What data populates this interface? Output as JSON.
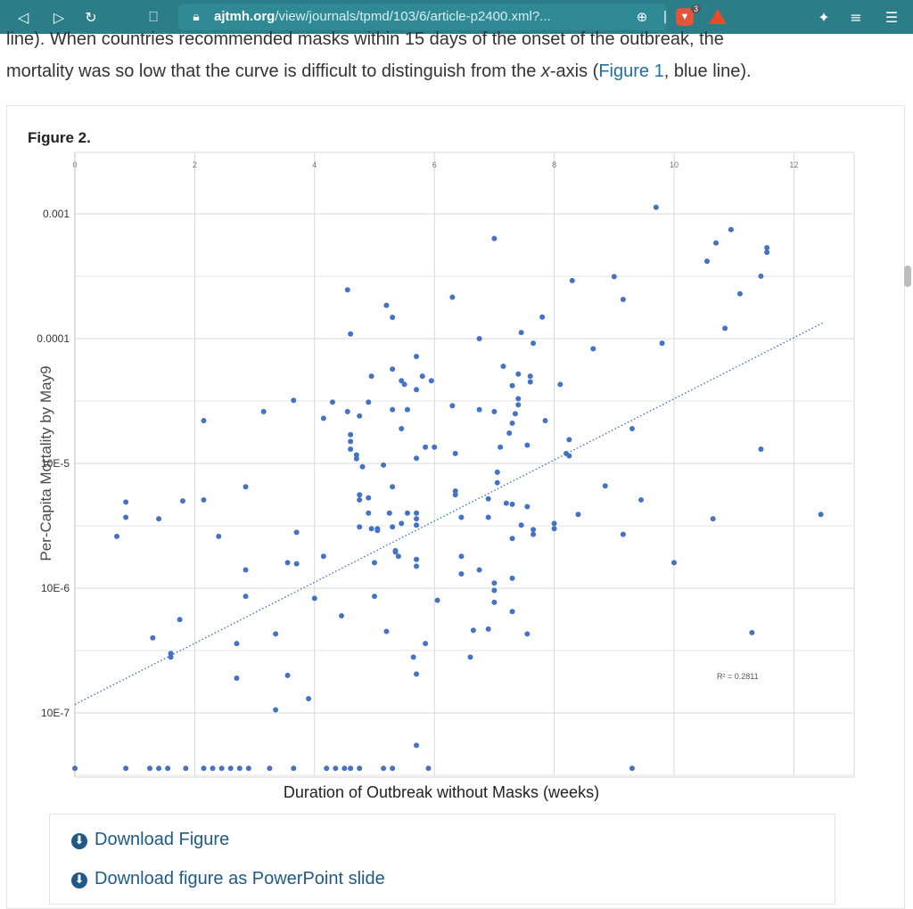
{
  "browser": {
    "url_host": "ajtmh.org",
    "url_path": "/view/journals/tpmd/103/6/article-p2400.xml?...",
    "shield_count": "3"
  },
  "article": {
    "line1": "line). When countries recommended masks within 15 days of the onset of the outbreak, the",
    "line2_a": "mortality was so low that the curve is difficult to distinguish from the ",
    "line2_x": "x",
    "line2_b": "-axis (",
    "line2_link": "Figure 1",
    "line2_c": ", blue line)."
  },
  "figure": {
    "label": "Figure 2.",
    "download_figure": "Download Figure",
    "download_ppt": "Download figure as PowerPoint slide"
  },
  "chart_data": {
    "type": "scatter",
    "xlabel": "Duration of Outbreak without Masks (weeks)",
    "ylabel": "Per-Capita Mortality by May9",
    "x_ticks": [
      "0",
      "2",
      "4",
      "6",
      "8",
      "10",
      "12"
    ],
    "y_ticks": [
      "0.001",
      "0.0001",
      "10E-5",
      "10E-6",
      "10E-7"
    ],
    "xlim": [
      0,
      12.6
    ],
    "y_scale": "log",
    "ylim": [
      3e-08,
      0.002
    ],
    "grid": true,
    "trendline": {
      "style": "dotted",
      "x0": 0,
      "y0": 1.17e-07,
      "x1": 12.5,
      "y1": 0.000135
    },
    "r2_label": "R² = 0.2811",
    "point_color": "#4472c4",
    "floor_value": 3.6e-08,
    "points": [
      [
        0.7,
        2.6e-06
      ],
      [
        0.85,
        4.9e-06
      ],
      [
        0.85,
        3.7e-06
      ],
      [
        1.4,
        3.6e-06
      ],
      [
        1.8,
        5e-06
      ],
      [
        2.15,
        5.1e-06
      ],
      [
        2.15,
        2.2e-05
      ],
      [
        2.4,
        2.6e-06
      ],
      [
        2.85,
        6.5e-06
      ],
      [
        1.3,
        4e-07
      ],
      [
        1.75,
        5.6e-07
      ],
      [
        1.6,
        3e-07
      ],
      [
        1.6,
        2.8e-07
      ],
      [
        2.7,
        3.6e-07
      ],
      [
        2.7,
        1.9e-07
      ],
      [
        2.85,
        1.4e-06
      ],
      [
        2.85,
        8.6e-07
      ],
      [
        3.15,
        2.6e-05
      ],
      [
        3.35,
        4.3e-07
      ],
      [
        3.35,
        1.06e-07
      ],
      [
        3.55,
        2e-07
      ],
      [
        3.65,
        3.2e-05
      ],
      [
        3.55,
        1.6e-06
      ],
      [
        3.7,
        1.57e-06
      ],
      [
        3.7,
        2.8e-06
      ],
      [
        3.9,
        1.3e-07
      ],
      [
        4.0,
        8.3e-07
      ],
      [
        4.15,
        2.3e-05
      ],
      [
        4.15,
        1.8e-06
      ],
      [
        4.3,
        3.1e-05
      ],
      [
        4.55,
        0.000246
      ],
      [
        4.45,
        6e-07
      ],
      [
        4.6,
        0.000109
      ],
      [
        4.55,
        2.6e-05
      ],
      [
        4.6,
        1.7e-05
      ],
      [
        4.6,
        1.5e-05
      ],
      [
        4.6,
        1.3e-05
      ],
      [
        4.7,
        1.17e-05
      ],
      [
        4.7,
        1.09e-05
      ],
      [
        4.75,
        2.4e-05
      ],
      [
        4.75,
        5.6e-06
      ],
      [
        4.75,
        5.1e-06
      ],
      [
        4.75,
        3.1e-06
      ],
      [
        4.8,
        9.4e-06
      ],
      [
        4.9,
        3.1e-05
      ],
      [
        4.9,
        5.3e-06
      ],
      [
        4.9,
        4e-06
      ],
      [
        4.95,
        5e-05
      ],
      [
        4.95,
        3e-06
      ],
      [
        5.0,
        1.6e-06
      ],
      [
        5.0,
        8.6e-07
      ],
      [
        5.05,
        3e-06
      ],
      [
        5.05,
        2.9e-06
      ],
      [
        5.15,
        9.7e-06
      ],
      [
        5.2,
        4.5e-07
      ],
      [
        5.2,
        0.000185
      ],
      [
        5.25,
        4e-06
      ],
      [
        5.3,
        0.000148
      ],
      [
        5.3,
        6.5e-06
      ],
      [
        5.3,
        5.7e-05
      ],
      [
        5.3,
        2.7e-05
      ],
      [
        5.3,
        3.1e-06
      ],
      [
        5.35,
        1.95e-06
      ],
      [
        5.35,
        2e-06
      ],
      [
        5.4,
        1.8e-06
      ],
      [
        5.45,
        4.6e-05
      ],
      [
        5.45,
        1.9e-05
      ],
      [
        5.45,
        3.3e-06
      ],
      [
        5.5,
        4.3e-05
      ],
      [
        5.55,
        4e-06
      ],
      [
        5.55,
        2.7e-05
      ],
      [
        5.65,
        2.8e-07
      ],
      [
        5.7,
        3.9e-05
      ],
      [
        5.7,
        7.2e-05
      ],
      [
        5.7,
        1.1e-05
      ],
      [
        5.7,
        3.2e-06
      ],
      [
        5.7,
        3.6e-06
      ],
      [
        5.7,
        4e-06
      ],
      [
        5.7,
        1.7e-06
      ],
      [
        5.7,
        1.5e-06
      ],
      [
        5.7,
        2.05e-07
      ],
      [
        5.7,
        5.5e-08
      ],
      [
        5.8,
        5e-05
      ],
      [
        5.85,
        1.35e-05
      ],
      [
        5.85,
        3.6e-07
      ],
      [
        5.95,
        4.6e-05
      ],
      [
        6.0,
        1.35e-05
      ],
      [
        6.05,
        8e-07
      ],
      [
        6.3,
        2.9e-05
      ],
      [
        6.3,
        0.000215
      ],
      [
        6.35,
        6e-06
      ],
      [
        6.35,
        5.6e-06
      ],
      [
        6.35,
        1.2e-05
      ],
      [
        6.45,
        3.7e-06
      ],
      [
        6.45,
        1.3e-06
      ],
      [
        6.45,
        1.8e-06
      ],
      [
        6.6,
        2.8e-07
      ],
      [
        6.65,
        4.6e-07
      ],
      [
        6.75,
        0.0001
      ],
      [
        6.75,
        2.7e-05
      ],
      [
        6.75,
        1.4e-06
      ],
      [
        6.9,
        4.7e-07
      ],
      [
        6.9,
        5.2e-06
      ],
      [
        6.9,
        3.7e-06
      ],
      [
        7.0,
        0.000635
      ],
      [
        7.0,
        2.6e-05
      ],
      [
        7.0,
        7.7e-07
      ],
      [
        7.05,
        7e-06
      ],
      [
        7.0,
        1.1e-06
      ],
      [
        7.0,
        9.6e-07
      ],
      [
        7.05,
        8.5e-06
      ],
      [
        7.1,
        1.35e-05
      ],
      [
        7.15,
        6e-05
      ],
      [
        7.2,
        4.8e-06
      ],
      [
        7.25,
        1.75e-05
      ],
      [
        7.3,
        2.1e-05
      ],
      [
        7.3,
        6.5e-07
      ],
      [
        7.3,
        1.2e-06
      ],
      [
        7.3,
        4.2e-05
      ],
      [
        7.3,
        4.7e-06
      ],
      [
        7.3,
        2.5e-06
      ],
      [
        7.35,
        2.5e-05
      ],
      [
        7.4,
        3.3e-05
      ],
      [
        7.4,
        2.95e-05
      ],
      [
        7.4,
        5.2e-05
      ],
      [
        7.45,
        0.000112
      ],
      [
        7.45,
        3.2e-06
      ],
      [
        7.55,
        1.4e-05
      ],
      [
        7.55,
        4.5e-06
      ],
      [
        7.55,
        4.3e-07
      ],
      [
        7.6,
        5e-05
      ],
      [
        7.6,
        4.5e-05
      ],
      [
        7.65,
        9.2e-05
      ],
      [
        7.65,
        2.95e-06
      ],
      [
        7.65,
        2.7e-06
      ],
      [
        7.8,
        0.000149
      ],
      [
        7.85,
        2.2e-05
      ],
      [
        8.0,
        3.3e-06
      ],
      [
        8.0,
        3e-06
      ],
      [
        8.1,
        4.3e-05
      ],
      [
        8.2,
        1.2e-05
      ],
      [
        8.25,
        1.15e-05
      ],
      [
        8.25,
        1.55e-05
      ],
      [
        8.3,
        0.000292
      ],
      [
        8.4,
        3.9e-06
      ],
      [
        8.65,
        8.3e-05
      ],
      [
        8.85,
        6.6e-06
      ],
      [
        9.0,
        0.000314
      ],
      [
        9.15,
        0.000206
      ],
      [
        9.15,
        2.7e-06
      ],
      [
        9.3,
        1.9e-05
      ],
      [
        9.45,
        5.1e-06
      ],
      [
        9.7,
        0.00113
      ],
      [
        9.8,
        9.2e-05
      ],
      [
        10.0,
        1.6e-06
      ],
      [
        10.55,
        0.000417
      ],
      [
        10.65,
        3.6e-06
      ],
      [
        10.7,
        0.000585
      ],
      [
        10.85,
        0.000121
      ],
      [
        10.95,
        0.000749
      ],
      [
        11.1,
        0.000229
      ],
      [
        11.3,
        4.4e-07
      ],
      [
        11.45,
        1.3e-05
      ],
      [
        11.45,
        0.000317
      ],
      [
        11.55,
        0.000535
      ],
      [
        11.55,
        0.000492
      ],
      [
        12.45,
        3.9e-06
      ]
    ],
    "floor_x": [
      0,
      0.85,
      1.25,
      1.4,
      1.55,
      1.85,
      2.15,
      2.3,
      2.45,
      2.6,
      2.75,
      2.9,
      3.25,
      3.65,
      4.2,
      4.35,
      4.5,
      4.6,
      4.75,
      5.15,
      5.3,
      5.9,
      9.3
    ]
  }
}
